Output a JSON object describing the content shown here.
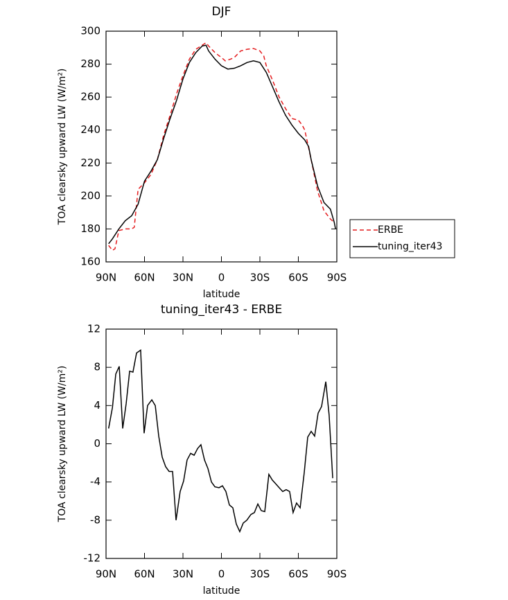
{
  "chart_data": [
    {
      "type": "line",
      "title": "DJF",
      "xlabel": "latitude",
      "ylabel": "TOA clearsky upward LW (W/m²)",
      "xlim": [
        90,
        -90
      ],
      "ylim": [
        160,
        300
      ],
      "xticks": [
        {
          "value": 90,
          "label": "90N"
        },
        {
          "value": 60,
          "label": "60N"
        },
        {
          "value": 30,
          "label": "30N"
        },
        0,
        {
          "value": -30,
          "label": "30S"
        },
        {
          "value": -60,
          "label": "60S"
        },
        {
          "value": -90,
          "label": "90S"
        }
      ],
      "yticks": [
        160,
        180,
        200,
        220,
        240,
        260,
        280,
        300
      ],
      "legend": "outside right",
      "series": [
        {
          "name": "ERBE",
          "color": "#e41a1c",
          "line_style": "dashed",
          "x": [
            88,
            85,
            83,
            80,
            75,
            70,
            68,
            65,
            60,
            55,
            50,
            45,
            40,
            35,
            30,
            25,
            20,
            15,
            12,
            10,
            5,
            0,
            -3,
            -7,
            -10,
            -15,
            -20,
            -25,
            -30,
            -33,
            -35,
            -40,
            -45,
            -50,
            -55,
            -60,
            -63,
            -65,
            -70,
            -75,
            -80,
            -85,
            -88
          ],
          "values": [
            170,
            167,
            168,
            179,
            180,
            180,
            181,
            204,
            208,
            213,
            222,
            237,
            249,
            262,
            273,
            283,
            289,
            291.5,
            293,
            291,
            287,
            284,
            282,
            283,
            284,
            288,
            289,
            289.5,
            288,
            285,
            279,
            270,
            260,
            253,
            247,
            246,
            243,
            240,
            222,
            203,
            191,
            186,
            184
          ]
        },
        {
          "name": "tuning_iter43",
          "color": "#000000",
          "line_style": "solid",
          "x": [
            88,
            85,
            80,
            75,
            70,
            65,
            60,
            55,
            50,
            45,
            40,
            35,
            30,
            25,
            20,
            15,
            12,
            10,
            5,
            0,
            -5,
            -10,
            -15,
            -20,
            -25,
            -30,
            -35,
            -40,
            -45,
            -50,
            -55,
            -60,
            -65,
            -68,
            -70,
            -75,
            -80,
            -85,
            -88,
            -89
          ],
          "values": [
            171,
            174,
            180,
            185,
            188,
            195,
            209,
            215,
            222,
            235,
            247,
            258,
            271,
            281,
            287,
            291,
            291.5,
            288,
            283,
            279,
            277,
            277.5,
            279,
            281,
            282,
            281,
            275,
            266,
            257,
            249,
            243,
            238,
            234,
            230,
            222,
            206,
            196,
            192,
            184,
            180
          ]
        }
      ]
    },
    {
      "type": "line",
      "title": "tuning_iter43 - ERBE",
      "xlabel": "latitude",
      "ylabel": "TOA clearsky upward LW (W/m²)",
      "xlim": [
        90,
        -90
      ],
      "ylim": [
        -12,
        12
      ],
      "xticks": [
        {
          "value": 90,
          "label": "90N"
        },
        {
          "value": 60,
          "label": "60N"
        },
        {
          "value": 30,
          "label": "30N"
        },
        0,
        {
          "value": -30,
          "label": "30S"
        },
        {
          "value": -60,
          "label": "60S"
        },
        {
          "value": -90,
          "label": "90S"
        }
      ],
      "yticks": [
        -12,
        -8,
        -4,
        0,
        4,
        8,
        12
      ],
      "series": [
        {
          "color": "#000000",
          "line_style": "solid",
          "x": [
            88,
            85,
            82.4,
            79.7,
            77,
            74.3,
            71.6,
            69,
            66.2,
            63,
            60.3,
            57.6,
            54.3,
            51.6,
            48.9,
            46.2,
            43.5,
            40.8,
            38.1,
            35.4,
            32.2,
            29.5,
            26.8,
            24,
            21.3,
            18.6,
            16,
            13.2,
            10.5,
            7.8,
            5.1,
            1.9,
            -0.8,
            -3.5,
            -6.2,
            -8.9,
            -11.6,
            -14.3,
            -17,
            -19.8,
            -23,
            -25.7,
            -28.4,
            -31.1,
            -33.8,
            -37,
            -39.7,
            -42.4,
            -45.1,
            -47.8,
            -50.5,
            -53.2,
            -55.9,
            -58.6,
            -61.4,
            -64.6,
            -67.3,
            -70,
            -72.7,
            -75.4,
            -78.1,
            -81.4,
            -84,
            -86.8
          ],
          "values": [
            1.6,
            3.8,
            7.3,
            8.1,
            1.6,
            4.2,
            7.6,
            7.5,
            9.5,
            9.8,
            1.1,
            4,
            4.6,
            4,
            0.8,
            -1.4,
            -2.4,
            -2.9,
            -2.9,
            -8,
            -5,
            -3.9,
            -1.7,
            -1,
            -1.2,
            -0.5,
            -0.1,
            -1.7,
            -2.6,
            -4,
            -4.5,
            -4.6,
            -4.4,
            -5,
            -6.4,
            -6.7,
            -8.4,
            -9.2,
            -8.3,
            -8,
            -7.4,
            -7.2,
            -6.3,
            -7,
            -7.1,
            -3.2,
            -3.8,
            -4.2,
            -4.6,
            -5,
            -4.8,
            -5,
            -7.2,
            -6.2,
            -6.7,
            -3,
            0.7,
            1.3,
            0.8,
            3.2,
            3.9,
            6.5,
            3,
            -3.6
          ]
        }
      ]
    }
  ]
}
